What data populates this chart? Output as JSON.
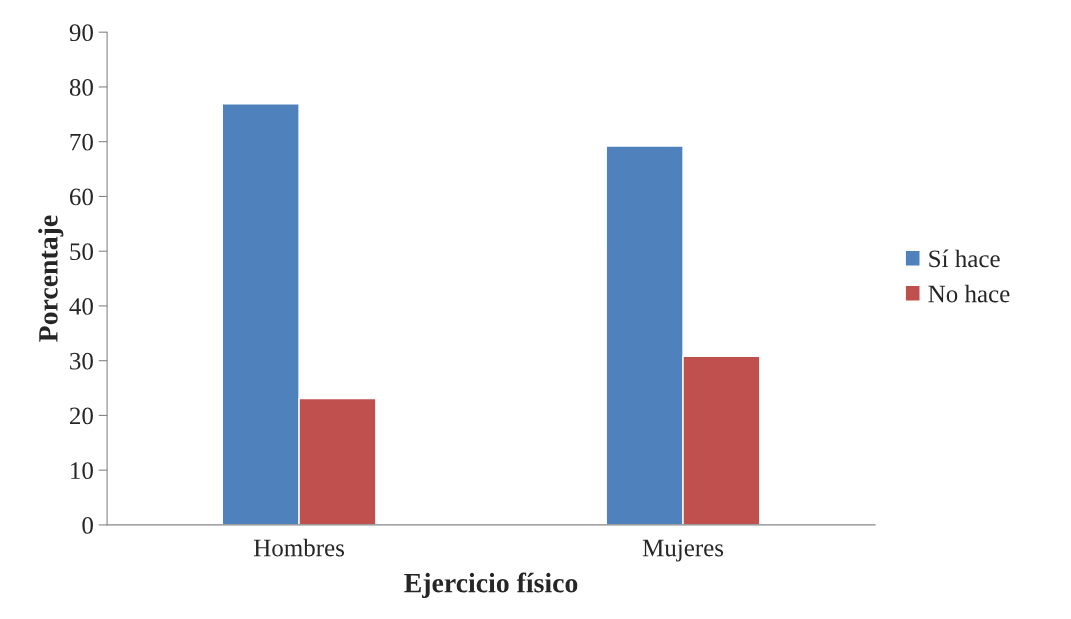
{
  "chart_data": {
    "type": "bar",
    "xlabel": "Ejercicio físico",
    "ylabel": "Porcentaje",
    "categories": [
      "Hombres",
      "Mujeres"
    ],
    "series": [
      {
        "name": "Sí hace",
        "color": "#4f81bd",
        "values": [
          76.9,
          69.2
        ]
      },
      {
        "name": "No hace",
        "color": "#c0504d",
        "values": [
          23.1,
          30.8
        ]
      }
    ],
    "ylim": [
      0,
      90
    ],
    "yticks": [
      0,
      10,
      20,
      30,
      40,
      50,
      60,
      70,
      80,
      90
    ],
    "grid": false,
    "legend": "right"
  }
}
